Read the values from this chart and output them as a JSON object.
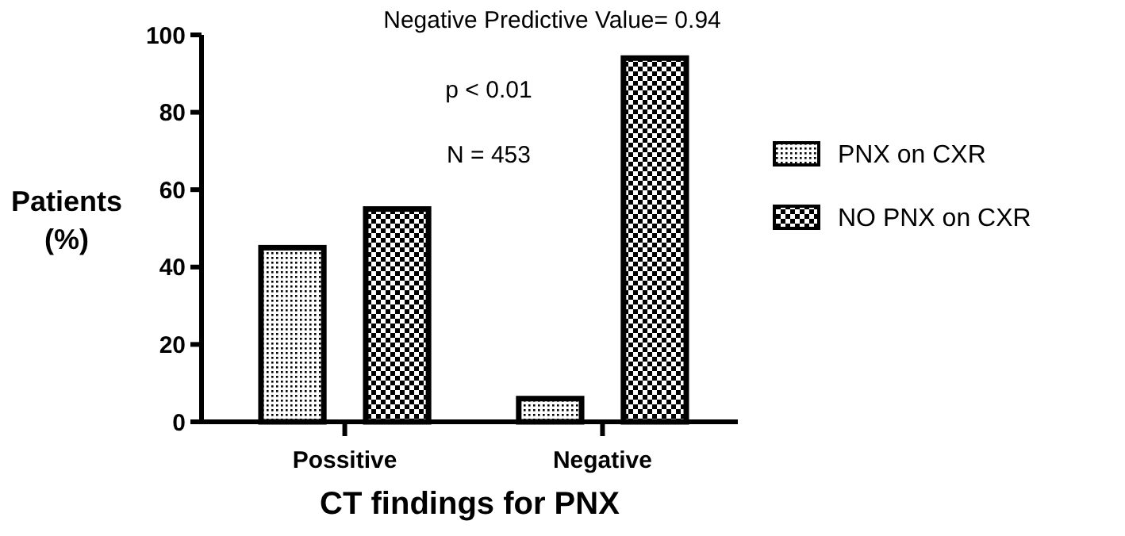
{
  "chart_data": {
    "type": "bar",
    "xlabel": "CT findings for PNX",
    "ylabel": "Patients (%)",
    "categories": [
      "Possitive",
      "Negative"
    ],
    "series": [
      {
        "name": "PNX on CXR",
        "color": "#000000",
        "values": [
          45,
          6
        ]
      },
      {
        "name": "NO PNX on CXR",
        "color": "#000000",
        "values": [
          55,
          94
        ]
      }
    ],
    "ylim": [
      0,
      100
    ],
    "yticks": [
      0,
      20,
      40,
      60,
      80,
      100
    ],
    "legend": "right",
    "grid": false,
    "annotations": [
      "Negative Predictive Value= 0.94",
      "p < 0.01",
      "N = 453"
    ]
  }
}
